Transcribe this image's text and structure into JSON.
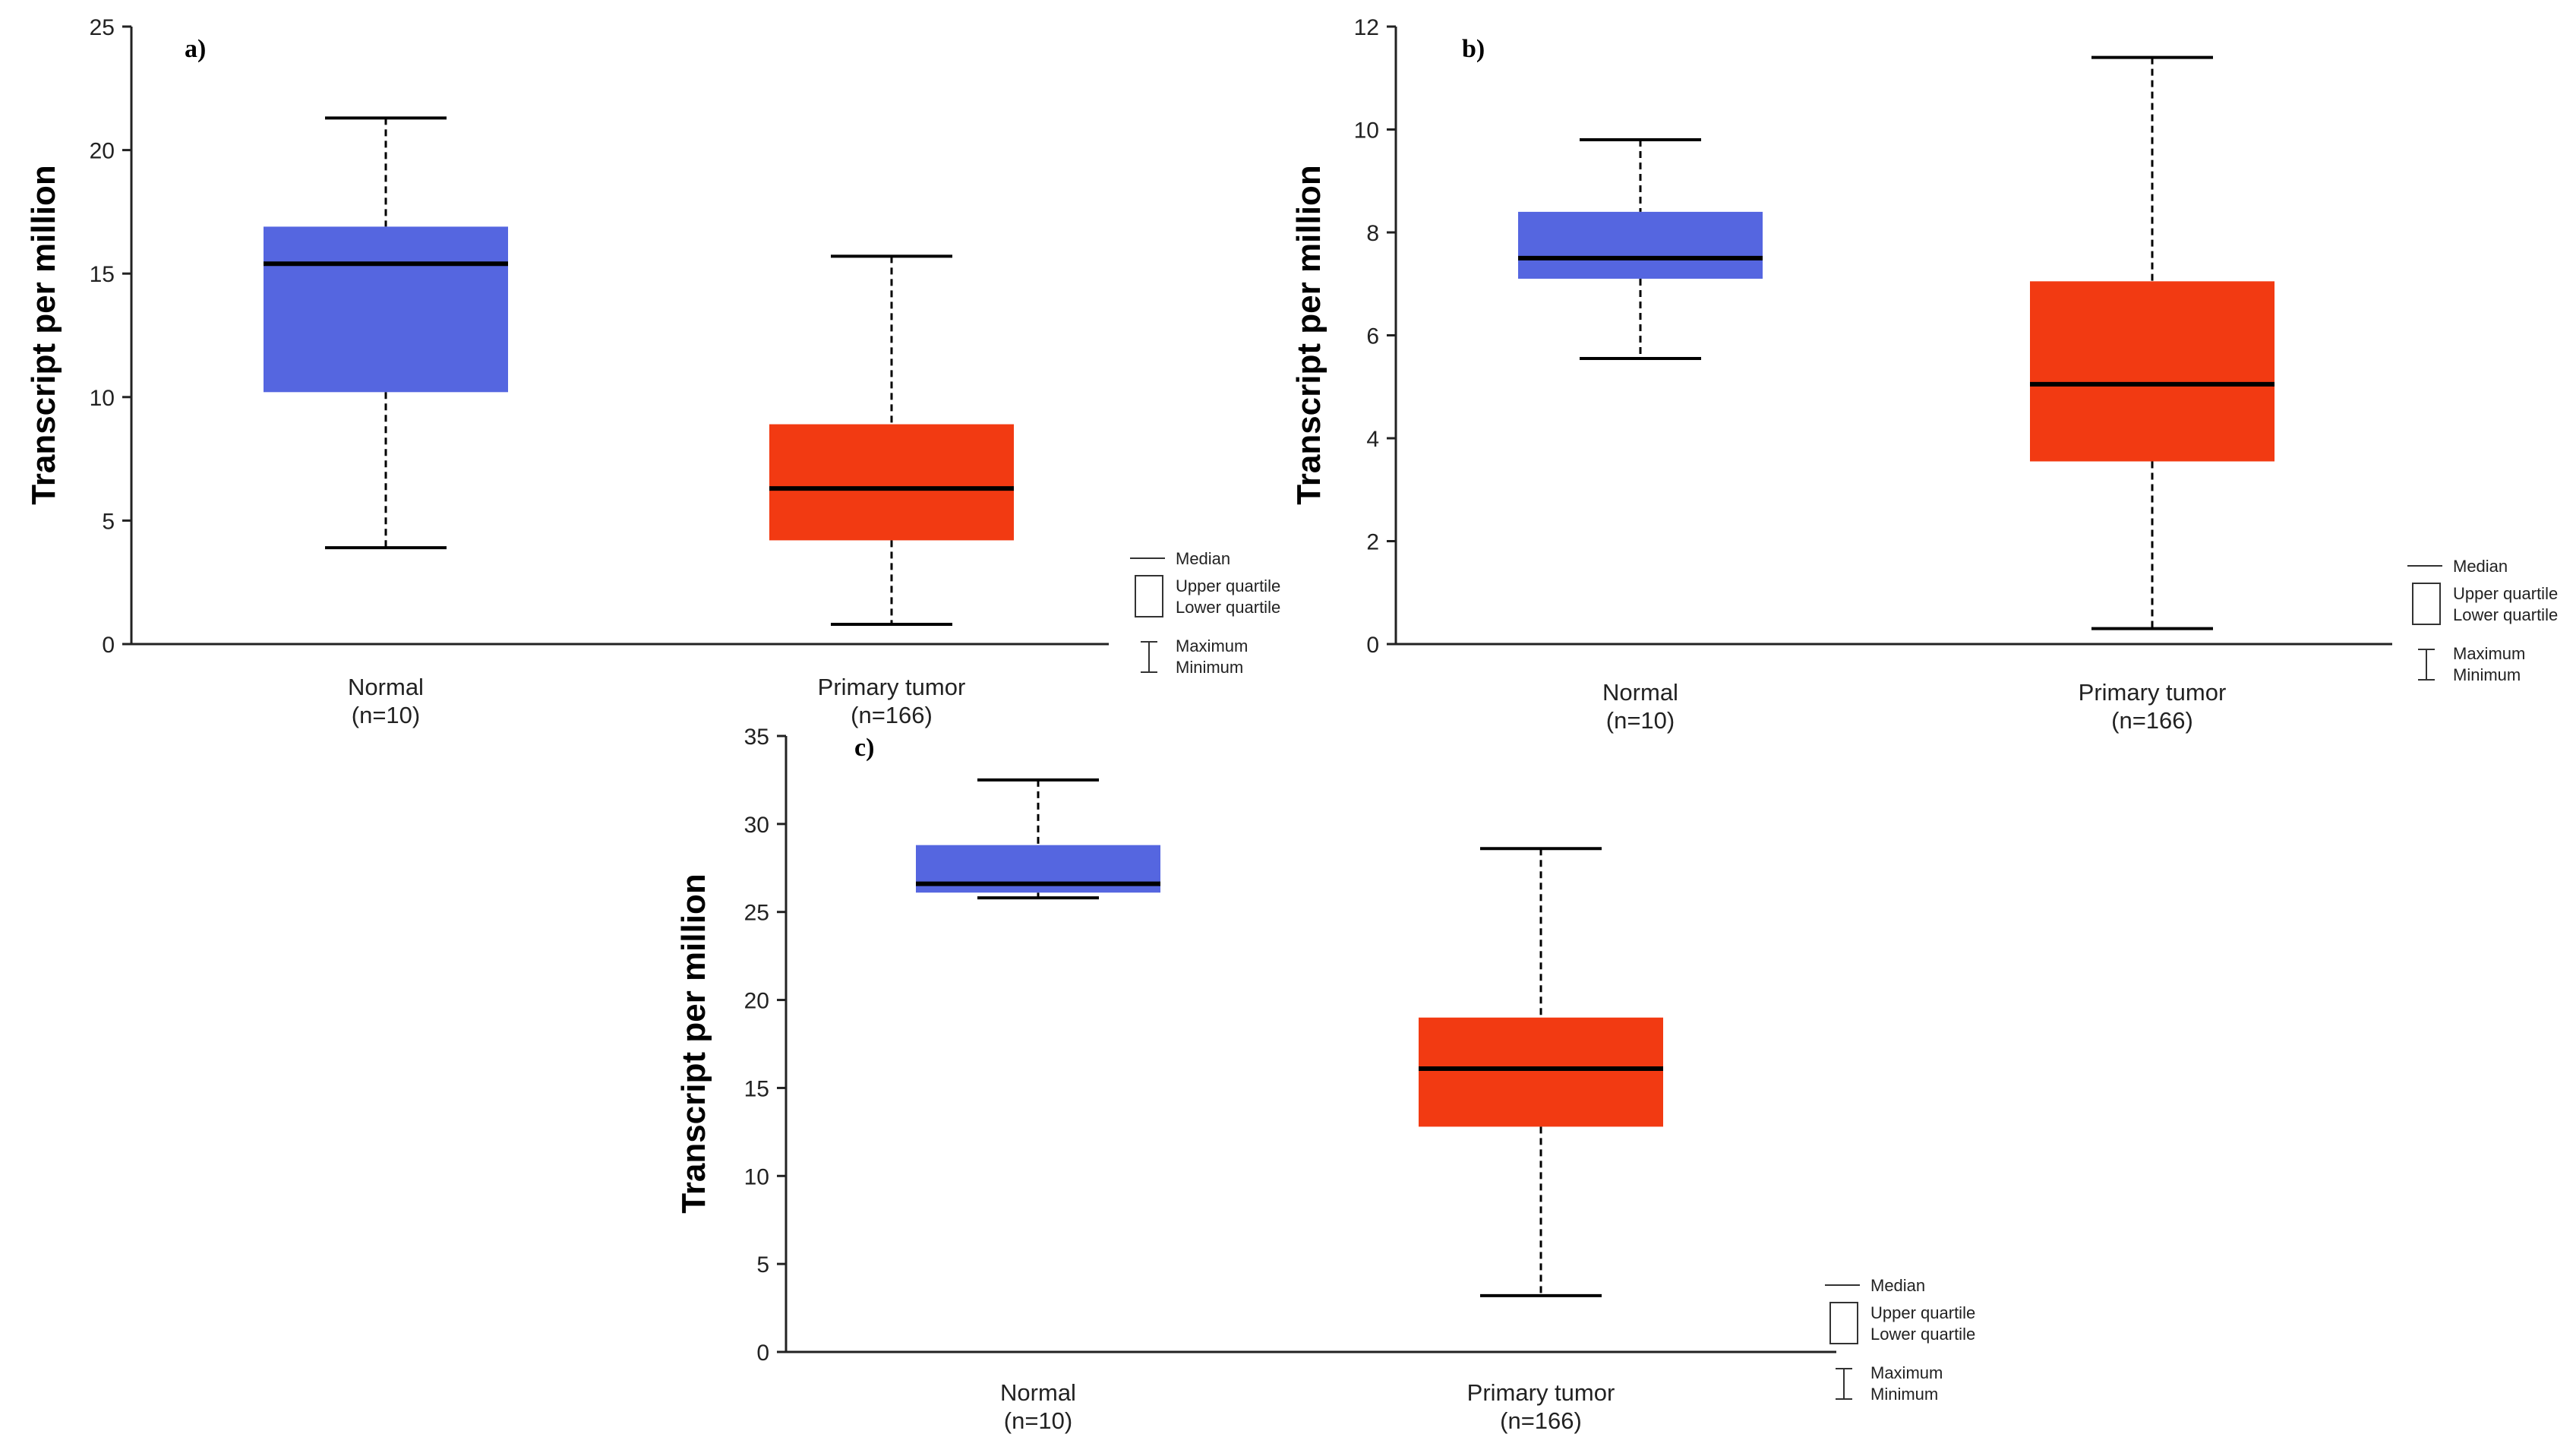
{
  "colors": {
    "normal": "#5566e0",
    "tumor": "#f23a12",
    "axis": "#222222"
  },
  "legend": {
    "median": "Median",
    "upper_quartile": "Upper quartile",
    "lower_quartile": "Lower quartile",
    "maximum": "Maximum",
    "minimum": "Minimum"
  },
  "chart_data": [
    {
      "type": "box",
      "panel_label": "a)",
      "ylabel": "Transcript per million",
      "ylim": [
        0,
        25
      ],
      "yticks": [
        0,
        5,
        10,
        15,
        20,
        25
      ],
      "categories": [
        {
          "name": "Normal",
          "n": "(n=10)",
          "min": 3.9,
          "q1": 10.2,
          "median": 15.4,
          "q3": 16.9,
          "max": 21.3,
          "color": "normal"
        },
        {
          "name": "Primary tumor",
          "n": "(n=166)",
          "min": 0.8,
          "q1": 4.2,
          "median": 6.3,
          "q3": 8.9,
          "max": 15.7,
          "color": "tumor"
        }
      ]
    },
    {
      "type": "box",
      "panel_label": "b)",
      "ylabel": "Transcript per million",
      "ylim": [
        0,
        12
      ],
      "yticks": [
        0,
        2,
        4,
        6,
        8,
        10,
        12
      ],
      "categories": [
        {
          "name": "Normal",
          "n": "(n=10)",
          "min": 5.55,
          "q1": 7.1,
          "median": 7.5,
          "q3": 8.4,
          "max": 9.8,
          "color": "normal"
        },
        {
          "name": "Primary tumor",
          "n": "(n=166)",
          "min": 0.3,
          "q1": 3.55,
          "median": 5.05,
          "q3": 7.05,
          "max": 11.4,
          "color": "tumor"
        }
      ]
    },
    {
      "type": "box",
      "panel_label": "c)",
      "ylabel": "Transcript per million",
      "ylim": [
        0,
        35
      ],
      "yticks": [
        0,
        5,
        10,
        15,
        20,
        25,
        30,
        35
      ],
      "categories": [
        {
          "name": "Normal",
          "n": "(n=10)",
          "min": 25.8,
          "q1": 26.1,
          "median": 26.6,
          "q3": 28.8,
          "max": 32.5,
          "color": "normal"
        },
        {
          "name": "Primary tumor",
          "n": "(n=166)",
          "min": 3.2,
          "q1": 12.8,
          "median": 16.1,
          "q3": 19.0,
          "max": 28.6,
          "color": "tumor"
        }
      ]
    }
  ]
}
